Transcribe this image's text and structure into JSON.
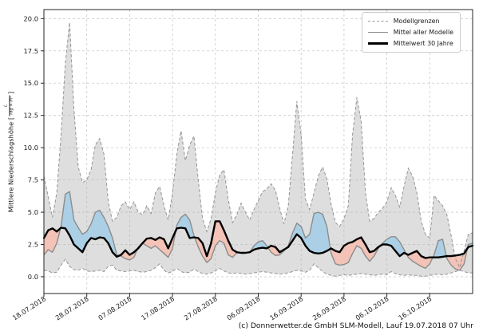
{
  "caption": "(c) Donnerwetter.de GmbH SLM-Modell, Lauf 19.07.2018 07 Uhr",
  "ylabel": {
    "prefix": "Mittlere Niederschlagshöhe [",
    "frac_numerator": "L",
    "frac_denominator": "Tag × m²",
    "suffix": "]"
  },
  "legend": {
    "items": [
      {
        "label": "Modellgrenzen",
        "style": "dashed-gray"
      },
      {
        "label": "Mittel aller Modelle",
        "style": "solid-gray"
      },
      {
        "label": "Mittelwert 30 Jahre",
        "style": "thick-black"
      }
    ]
  },
  "chart_data": {
    "type": "area",
    "title": "",
    "xlabel": "",
    "ylabel": "Mittlere Niederschlagshöhe [L/(Tag × m²)]",
    "grid": true,
    "legend_position": "upper right",
    "x_unit": "days since 18.07.2018",
    "xlim_days": [
      0,
      100
    ],
    "ylim": [
      -1.3,
      20.7
    ],
    "x_tick_days": [
      0,
      10,
      20,
      30,
      40,
      50,
      60,
      70,
      80,
      90
    ],
    "x_tick_labels": [
      "18.07.2018",
      "28.07.2018",
      "07.08.2018",
      "17.08.2018",
      "27.08.2018",
      "06.09.2018",
      "16.09.2018",
      "26.09.2018",
      "06.10.2018",
      "16.10.2018"
    ],
    "y_tick_labels": [
      "0.0",
      "2.5",
      "5.0",
      "7.5",
      "10.0",
      "12.5",
      "15.0",
      "17.5",
      "20.0"
    ],
    "colors": {
      "envelope_fill": "#b5b5b5",
      "envelope_edge": "#959595",
      "model_mean": "#8c8c8c",
      "mean30": "#000000",
      "above_fill": "#abd0e6",
      "below_fill": "#f2c3b6",
      "grid": "#c9c9c9",
      "frame": "#262626"
    },
    "series": [
      {
        "name": "Modellgrenzen (obere Grenze)",
        "role": "upper",
        "values": [
          7.8,
          6.2,
          4.6,
          6.5,
          11,
          16.5,
          19.7,
          13,
          8.5,
          7.3,
          7.5,
          8.3,
          10.2,
          10.7,
          9.5,
          5.8,
          4.3,
          4.6,
          5.5,
          5.8,
          5.2,
          5.8,
          5,
          4.8,
          5.5,
          4.9,
          6.5,
          7,
          5.5,
          4.4,
          6.5,
          9.5,
          11.3,
          9,
          10.2,
          10.9,
          7.5,
          4.5,
          3.5,
          4.5,
          6.5,
          7.9,
          8.3,
          6,
          4.2,
          4.8,
          5.7,
          5,
          4.4,
          5.2,
          5.9,
          6.6,
          6.8,
          7.2,
          6.7,
          5.3,
          4.1,
          5.5,
          9.5,
          13.6,
          11,
          6,
          5.2,
          6.5,
          7.8,
          8.5,
          7.6,
          5.6,
          4.2,
          3.9,
          4.5,
          5.5,
          11,
          13.9,
          12,
          6.5,
          4.3,
          4.5,
          5,
          5.3,
          5.8,
          6.9,
          6.3,
          5.4,
          7,
          8.4,
          7.8,
          6.5,
          4.3,
          3.3,
          3,
          6.3,
          5.9,
          5.5,
          4.8,
          3.2,
          1.4,
          0.7,
          2,
          3.3,
          3.4
        ]
      },
      {
        "name": "Modellgrenzen (untere Grenze)",
        "role": "lower",
        "values": [
          0.5,
          0.45,
          0.3,
          0.35,
          0.9,
          1.35,
          0.8,
          0.55,
          0.5,
          0.65,
          0.45,
          0.4,
          0.45,
          0.5,
          0.4,
          0.8,
          0.9,
          0.5,
          0.45,
          0.4,
          0.45,
          0.5,
          0.4,
          0.35,
          0.4,
          0.5,
          0.7,
          1,
          0.5,
          0.3,
          0.4,
          0.65,
          0.4,
          0.3,
          0.35,
          0.6,
          0.4,
          0.25,
          0.2,
          0.3,
          0.45,
          0.65,
          0.45,
          0.3,
          0.25,
          0.3,
          0.25,
          0.2,
          0.25,
          0.3,
          0.35,
          0.4,
          0.35,
          0.3,
          0.25,
          0.2,
          0.25,
          0.3,
          0.4,
          0.5,
          0.45,
          0.35,
          0.5,
          1,
          0.7,
          0.4,
          0.2,
          0.1,
          0.05,
          0.1,
          0.15,
          0.1,
          0.15,
          0.2,
          0.25,
          0.2,
          0.15,
          0.1,
          0.15,
          0.2,
          0.15,
          0.4,
          0.25,
          0.15,
          0.1,
          0.15,
          0.1,
          0.1,
          0.05,
          0.05,
          0.1,
          0.15,
          0.2,
          0.15,
          0.2,
          0.3,
          0.4,
          0.5,
          0.4,
          0.3,
          0.3
        ]
      },
      {
        "name": "Mittel aller Modelle",
        "role": "model_mean",
        "values": [
          1.7,
          2.1,
          1.9,
          2.6,
          3.9,
          6.4,
          6.6,
          4.4,
          3.8,
          3.3,
          3.5,
          4.1,
          5,
          5.15,
          4.6,
          3.9,
          3,
          1.7,
          1.6,
          1.4,
          1.3,
          1.5,
          2.3,
          2.6,
          2.4,
          2.2,
          2.4,
          2.1,
          1.8,
          1.5,
          2.2,
          4,
          4.6,
          4.85,
          4.4,
          3.2,
          2.3,
          1.6,
          1.1,
          1.4,
          2.4,
          2.8,
          2.6,
          1.7,
          1.5,
          1.85,
          1.85,
          1.85,
          1.9,
          2.4,
          2.7,
          2.8,
          2.4,
          1.9,
          1.65,
          1.7,
          2,
          2.4,
          3.4,
          4.15,
          3.9,
          3,
          3.3,
          4.9,
          5,
          4.85,
          3.9,
          1.8,
          1,
          0.9,
          0.95,
          1.1,
          1.8,
          2.4,
          2.2,
          1.6,
          1.2,
          1.6,
          2.2,
          2.6,
          2.9,
          3.1,
          3.1,
          2.7,
          2.1,
          1.5,
          1.2,
          1,
          0.8,
          0.65,
          1,
          1.7,
          2.8,
          2.9,
          1.4,
          0.9,
          0.6,
          0.5,
          1,
          2.5,
          2.6
        ]
      },
      {
        "name": "Mittelwert 30 Jahre",
        "role": "mean30",
        "values": [
          3,
          3.6,
          3.75,
          3.5,
          3.8,
          3.75,
          3.2,
          2.5,
          2.2,
          1.9,
          2.6,
          3,
          2.9,
          3.05,
          3,
          2.6,
          1.9,
          1.55,
          1.7,
          2.05,
          1.7,
          1.9,
          2.2,
          2.6,
          2.95,
          3,
          2.85,
          3.05,
          2.9,
          2.2,
          3,
          3.75,
          3.8,
          3.75,
          3,
          3.05,
          3,
          2.6,
          1.6,
          2.6,
          4.3,
          4.3,
          3.6,
          2.8,
          2.1,
          1.9,
          1.85,
          1.85,
          1.9,
          2.1,
          2.2,
          2.25,
          2.2,
          2.4,
          2.3,
          1.9,
          2.1,
          2.3,
          2.8,
          3.3,
          3,
          2.4,
          2,
          1.85,
          1.8,
          1.85,
          2,
          2.2,
          2,
          1.9,
          2.4,
          2.6,
          2.7,
          2.9,
          3.05,
          2.5,
          1.9,
          2,
          2.3,
          2.5,
          2.5,
          2.4,
          2,
          1.6,
          1.85,
          1.7,
          1.85,
          2,
          1.6,
          1.45,
          1.5,
          1.5,
          1.5,
          1.55,
          1.6,
          1.6,
          1.65,
          1.7,
          1.8,
          2.3,
          2.4
        ]
      }
    ]
  }
}
